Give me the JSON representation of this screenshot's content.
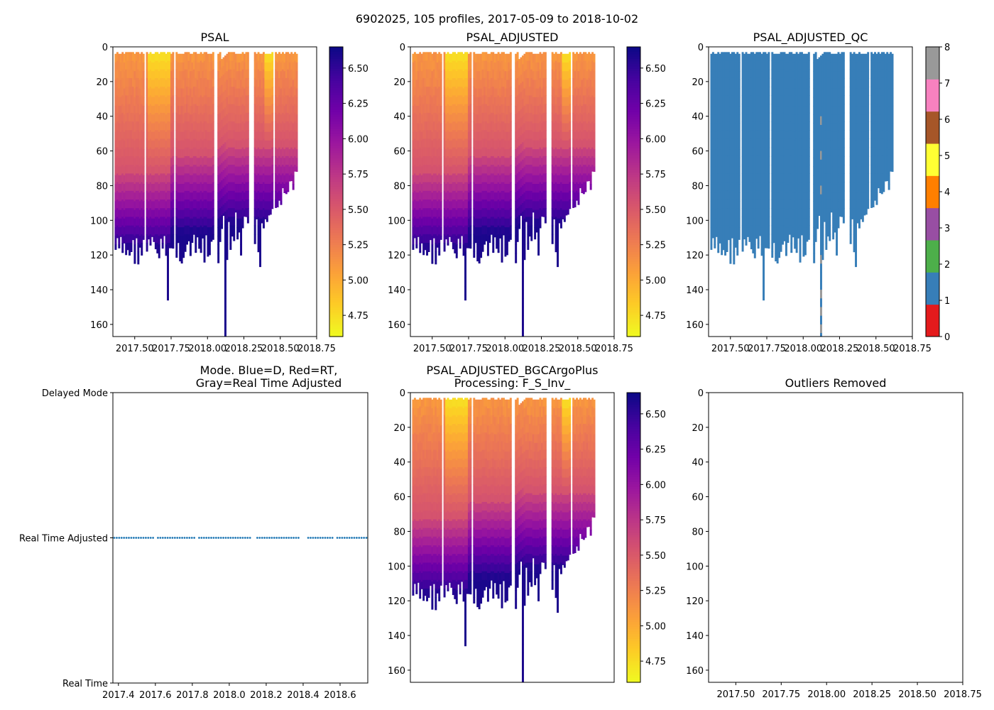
{
  "figure_title": "6902025, 105 profiles, 2017-05-09 to 2018-10-02",
  "colors": {
    "plasma": [
      "#f0f921",
      "#fdca26",
      "#fb9f3a",
      "#ed7953",
      "#d8576b",
      "#bd3786",
      "#9c179e",
      "#7201a8",
      "#46039f",
      "#0d0887"
    ],
    "qc_palette": [
      "#e41a1c",
      "#377eb8",
      "#4daf4a",
      "#984ea3",
      "#ff7f00",
      "#ffff33",
      "#a65628",
      "#f781bf",
      "#999999"
    ],
    "mode_dots": "#1f77b4"
  },
  "chart_data": [
    {
      "id": "psal",
      "type": "heatmap",
      "title": "PSAL",
      "xlim": [
        2017.35,
        2018.75
      ],
      "ylim": [
        167,
        0
      ],
      "xticks": [
        "2017.50",
        "2017.75",
        "2018.00",
        "2018.25",
        "2018.50",
        "2018.75"
      ],
      "yticks": [
        "0",
        "20",
        "40",
        "60",
        "80",
        "100",
        "120",
        "140",
        "160"
      ],
      "colorbar": {
        "range": [
          4.6,
          6.65
        ],
        "ticks": [
          "4.75",
          "5.00",
          "5.25",
          "5.50",
          "5.75",
          "6.00",
          "6.25",
          "6.50"
        ]
      }
    },
    {
      "id": "psal_adjusted",
      "type": "heatmap",
      "title": "PSAL_ADJUSTED",
      "xlim": [
        2017.35,
        2018.75
      ],
      "ylim": [
        167,
        0
      ],
      "xticks": [
        "2017.50",
        "2017.75",
        "2018.00",
        "2018.25",
        "2018.50",
        "2018.75"
      ],
      "yticks": [
        "0",
        "20",
        "40",
        "60",
        "80",
        "100",
        "120",
        "140",
        "160"
      ],
      "colorbar": {
        "range": [
          4.6,
          6.65
        ],
        "ticks": [
          "4.75",
          "5.00",
          "5.25",
          "5.50",
          "5.75",
          "6.00",
          "6.25",
          "6.50"
        ]
      }
    },
    {
      "id": "psal_adjusted_qc",
      "type": "heatmap",
      "title": "PSAL_ADJUSTED_QC",
      "xlim": [
        2017.35,
        2018.75
      ],
      "ylim": [
        167,
        0
      ],
      "xticks": [
        "2017.50",
        "2017.75",
        "2018.00",
        "2018.25",
        "2018.50",
        "2018.75"
      ],
      "yticks": [
        "0",
        "20",
        "40",
        "60",
        "80",
        "100",
        "120",
        "140",
        "160"
      ],
      "qc_colorbar": {
        "range": [
          0,
          8
        ],
        "ticks": [
          "0",
          "1",
          "2",
          "3",
          "4",
          "5",
          "6",
          "7",
          "8"
        ]
      },
      "dominant_flag": 1,
      "secondary_flag": 8
    },
    {
      "id": "mode",
      "type": "scatter",
      "title": [
        "Mode. Blue=D, Red=RT,",
        "Gray=Real Time Adjusted"
      ],
      "xlim": [
        2017.37,
        2018.75
      ],
      "xticks": [
        "2017.4",
        "2017.6",
        "2017.8",
        "2018.0",
        "2018.2",
        "2018.4",
        "2018.6"
      ],
      "ycategories": [
        "Delayed Mode",
        "Real Time Adjusted",
        "Real Time"
      ],
      "points_y": "Real Time Adjusted"
    },
    {
      "id": "bgc",
      "type": "heatmap",
      "title": [
        "PSAL_ADJUSTED_BGCArgoPlus",
        "Processing: F_S_Inv_"
      ],
      "xlim": [
        2017.35,
        2018.75
      ],
      "ylim": [
        167,
        0
      ],
      "xticks": [],
      "yticks": [
        "0",
        "20",
        "40",
        "60",
        "80",
        "100",
        "120",
        "140",
        "160"
      ],
      "colorbar": {
        "range": [
          4.6,
          6.65
        ],
        "ticks": [
          "4.75",
          "5.00",
          "5.25",
          "5.50",
          "5.75",
          "6.00",
          "6.25",
          "6.50"
        ]
      }
    },
    {
      "id": "outliers",
      "type": "heatmap",
      "title": "Outliers Removed",
      "xlim": [
        2017.35,
        2018.75
      ],
      "ylim": [
        167,
        0
      ],
      "xticks": [
        "2017.50",
        "2017.75",
        "2018.00",
        "2018.25",
        "2018.50",
        "2018.75"
      ],
      "yticks": [
        "0",
        "20",
        "40",
        "60",
        "80",
        "100",
        "120",
        "140",
        "160"
      ],
      "empty": true
    }
  ]
}
